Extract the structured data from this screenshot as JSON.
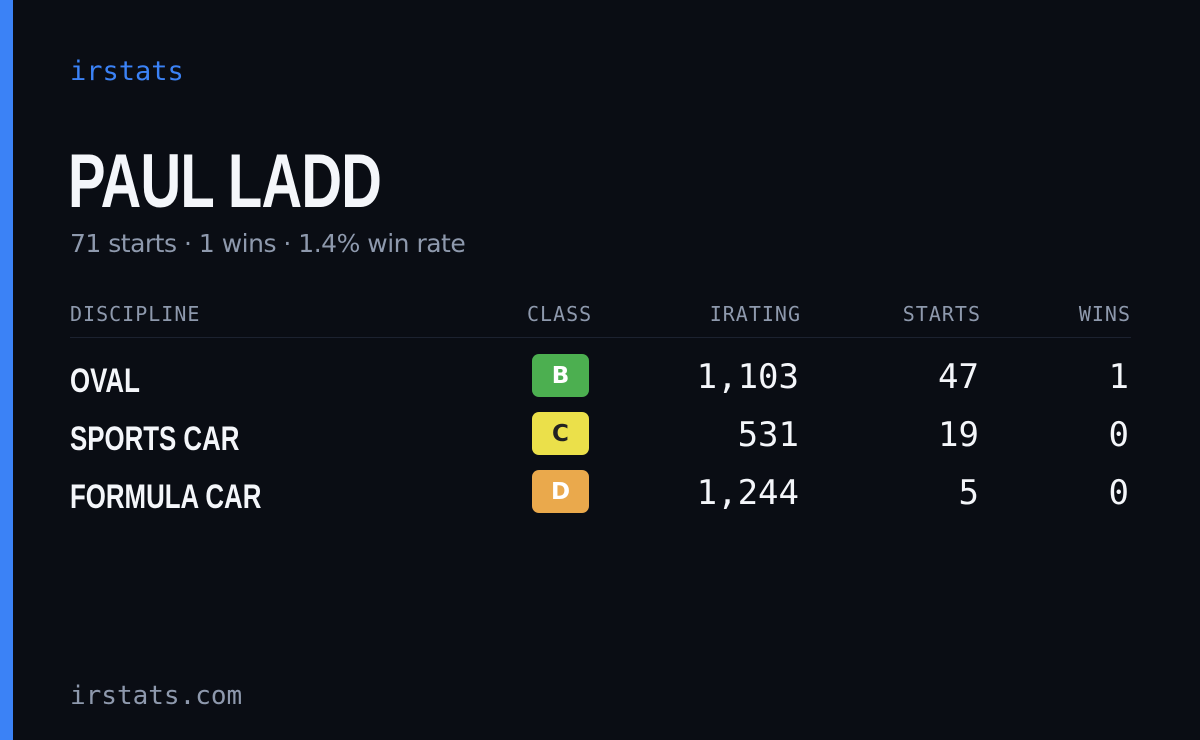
{
  "brand": "irstats",
  "driver": {
    "name": "PAUL LADD",
    "summary": "71 starts · 1 wins · 1.4% win rate"
  },
  "table": {
    "headers": {
      "discipline": "DISCIPLINE",
      "class": "CLASS",
      "irating": "IRATING",
      "starts": "STARTS",
      "wins": "WINS"
    },
    "rows": [
      {
        "discipline": "OVAL",
        "class": "B",
        "class_color": "#4caf50",
        "class_text_color": "#ffffff",
        "irating": "1,103",
        "starts": "47",
        "wins": "1"
      },
      {
        "discipline": "SPORTS CAR",
        "class": "C",
        "class_color": "#ebe04a",
        "class_text_color": "#222222",
        "irating": "531",
        "starts": "19",
        "wins": "0"
      },
      {
        "discipline": "FORMULA CAR",
        "class": "D",
        "class_color": "#eaa94c",
        "class_text_color": "#ffffff",
        "irating": "1,244",
        "starts": "5",
        "wins": "0"
      }
    ]
  },
  "footer": "irstats.com",
  "colors": {
    "accent": "#3b82f6",
    "background": "#0a0d14",
    "muted_text": "#8e99ad",
    "primary_text": "#f4f6fa"
  }
}
